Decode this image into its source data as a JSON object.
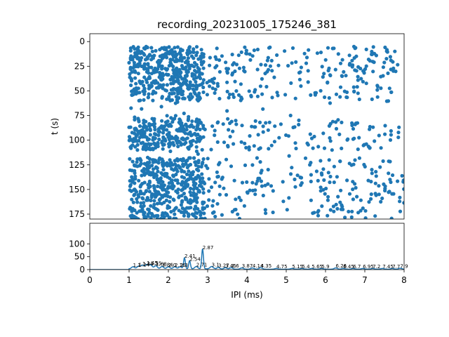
{
  "chart_data": [
    {
      "type": "scatter",
      "title": "recording_20231005_175246_381",
      "xlabel": "",
      "ylabel": "t (s)",
      "xlim": [
        0,
        8
      ],
      "ylim": [
        180,
        -8
      ],
      "y_inverted": true,
      "yticks": [
        0,
        25,
        50,
        75,
        100,
        125,
        150,
        175
      ],
      "color": "#1f77b4",
      "point_density": {
        "x_ranges": [
          [
            1.0,
            8.0
          ]
        ],
        "dense_bands_y": [
          [
            5,
            60
          ],
          [
            78,
            110
          ],
          [
            118,
            180
          ]
        ],
        "gap_bands_y": [
          [
            60,
            78
          ],
          [
            110,
            118
          ]
        ],
        "densest_x": [
          1.0,
          2.9
        ]
      }
    },
    {
      "type": "line",
      "title": "",
      "xlabel": "IPI (ms)",
      "ylabel": "",
      "xlim": [
        0,
        8
      ],
      "ylim": [
        0,
        180
      ],
      "xticks": [
        0,
        1,
        2,
        3,
        4,
        5,
        6,
        7,
        8
      ],
      "yticks": [
        0,
        50,
        100
      ],
      "color": "#1f77b4",
      "peaks": [
        {
          "x": 1.1,
          "y": 8,
          "label": "1.1"
        },
        {
          "x": 1.24,
          "y": 10,
          "label": "1.24"
        },
        {
          "x": 1.34,
          "y": 14,
          "label": "1.34"
        },
        {
          "x": 1.45,
          "y": 16,
          "label": "1.45"
        },
        {
          "x": 1.55,
          "y": 15,
          "label": "1.55"
        },
        {
          "x": 1.68,
          "y": 12,
          "label": "1.68"
        },
        {
          "x": 1.84,
          "y": 9,
          "label": "1.84"
        },
        {
          "x": 2.0,
          "y": 8,
          "label": "2.0"
        },
        {
          "x": 2.16,
          "y": 8,
          "label": "2.16"
        },
        {
          "x": 2.3,
          "y": 8,
          "label": "2.3"
        },
        {
          "x": 2.41,
          "y": 43,
          "label": "2.41"
        },
        {
          "x": 2.54,
          "y": 32,
          "label": "2.54"
        },
        {
          "x": 2.71,
          "y": 9,
          "label": "2.71"
        },
        {
          "x": 2.87,
          "y": 77,
          "label": "2.87"
        },
        {
          "x": 3.1,
          "y": 9,
          "label": "3.1"
        },
        {
          "x": 3.27,
          "y": 7,
          "label": "3.27"
        },
        {
          "x": 3.45,
          "y": 6,
          "label": "3.45"
        },
        {
          "x": 3.6,
          "y": 6,
          "label": "3.6"
        },
        {
          "x": 3.87,
          "y": 5,
          "label": "3.87"
        },
        {
          "x": 4.14,
          "y": 5,
          "label": "4.14"
        },
        {
          "x": 4.35,
          "y": 6,
          "label": "4.35"
        },
        {
          "x": 4.75,
          "y": 3,
          "label": "4.75"
        },
        {
          "x": 5.15,
          "y": 3,
          "label": "5.15"
        },
        {
          "x": 5.4,
          "y": 3,
          "label": "5.4"
        },
        {
          "x": 5.65,
          "y": 3,
          "label": "5.65"
        },
        {
          "x": 5.9,
          "y": 3,
          "label": "5.9"
        },
        {
          "x": 6.26,
          "y": 5,
          "label": "6.26"
        },
        {
          "x": 6.45,
          "y": 3,
          "label": "6.45"
        },
        {
          "x": 6.7,
          "y": 3,
          "label": "6.7"
        },
        {
          "x": 6.95,
          "y": 3,
          "label": "6.95"
        },
        {
          "x": 7.2,
          "y": 3,
          "label": "7.2"
        },
        {
          "x": 7.45,
          "y": 3,
          "label": "7.45"
        },
        {
          "x": 7.7,
          "y": 3,
          "label": "7.7"
        },
        {
          "x": 7.9,
          "y": 4,
          "label": "7.9"
        }
      ]
    }
  ]
}
